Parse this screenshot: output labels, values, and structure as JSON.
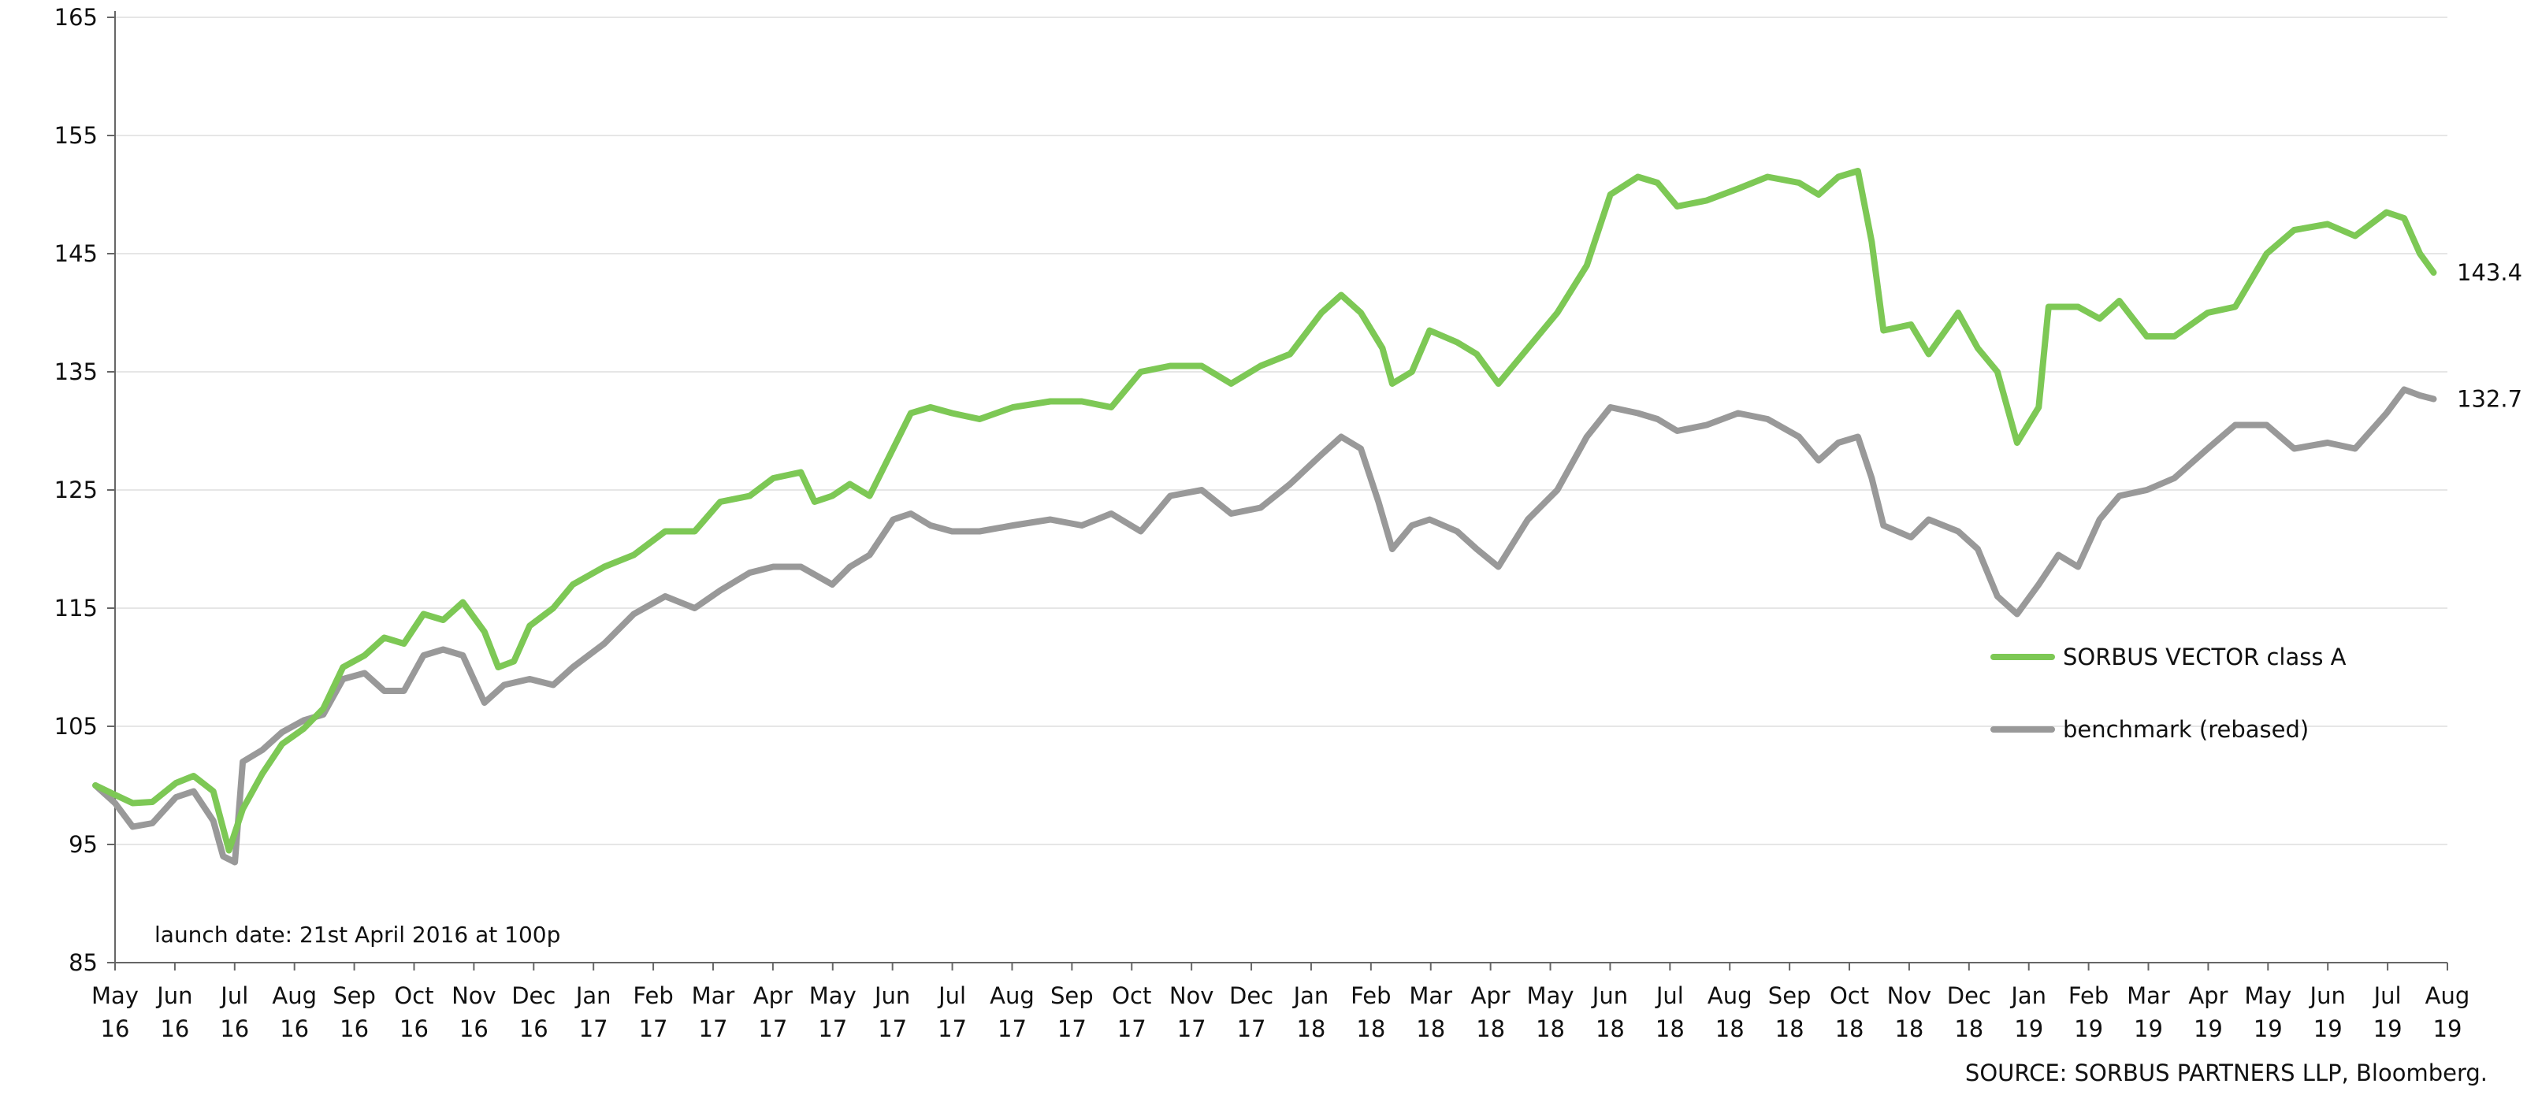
{
  "chart_data": {
    "type": "line",
    "title": "",
    "xlabel": "",
    "ylabel": "",
    "ylim": [
      85,
      165
    ],
    "yticks": [
      85,
      95,
      105,
      115,
      125,
      135,
      145,
      155,
      165
    ],
    "grid": true,
    "legend_position": "right",
    "x_axis": {
      "start": "2016-05",
      "end": "2019-08",
      "ticks": [
        {
          "month": "May",
          "year": "16"
        },
        {
          "month": "Jun",
          "year": "16"
        },
        {
          "month": "Jul",
          "year": "16"
        },
        {
          "month": "Aug",
          "year": "16"
        },
        {
          "month": "Sep",
          "year": "16"
        },
        {
          "month": "Oct",
          "year": "16"
        },
        {
          "month": "Nov",
          "year": "16"
        },
        {
          "month": "Dec",
          "year": "16"
        },
        {
          "month": "Jan",
          "year": "17"
        },
        {
          "month": "Feb",
          "year": "17"
        },
        {
          "month": "Mar",
          "year": "17"
        },
        {
          "month": "Apr",
          "year": "17"
        },
        {
          "month": "May",
          "year": "17"
        },
        {
          "month": "Jun",
          "year": "17"
        },
        {
          "month": "Jul",
          "year": "17"
        },
        {
          "month": "Aug",
          "year": "17"
        },
        {
          "month": "Sep",
          "year": "17"
        },
        {
          "month": "Oct",
          "year": "17"
        },
        {
          "month": "Nov",
          "year": "17"
        },
        {
          "month": "Dec",
          "year": "17"
        },
        {
          "month": "Jan",
          "year": "18"
        },
        {
          "month": "Feb",
          "year": "18"
        },
        {
          "month": "Mar",
          "year": "18"
        },
        {
          "month": "Apr",
          "year": "18"
        },
        {
          "month": "May",
          "year": "18"
        },
        {
          "month": "Jun",
          "year": "18"
        },
        {
          "month": "Jul",
          "year": "18"
        },
        {
          "month": "Aug",
          "year": "18"
        },
        {
          "month": "Sep",
          "year": "18"
        },
        {
          "month": "Oct",
          "year": "18"
        },
        {
          "month": "Nov",
          "year": "18"
        },
        {
          "month": "Dec",
          "year": "18"
        },
        {
          "month": "Jan",
          "year": "19"
        },
        {
          "month": "Feb",
          "year": "19"
        },
        {
          "month": "Mar",
          "year": "19"
        },
        {
          "month": "Apr",
          "year": "19"
        },
        {
          "month": "May",
          "year": "19"
        },
        {
          "month": "Jun",
          "year": "19"
        },
        {
          "month": "Jul",
          "year": "19"
        },
        {
          "month": "Aug",
          "year": "19"
        }
      ]
    },
    "series": [
      {
        "name": "SORBUS VECTOR class A",
        "color": "#7dc855",
        "end_label": "143.4",
        "points": [
          [
            "2016-04-21",
            100.0
          ],
          [
            "2016-05-01",
            99.2
          ],
          [
            "2016-05-10",
            98.5
          ],
          [
            "2016-05-20",
            98.6
          ],
          [
            "2016-06-01",
            100.2
          ],
          [
            "2016-06-10",
            100.8
          ],
          [
            "2016-06-20",
            99.5
          ],
          [
            "2016-06-28",
            94.5
          ],
          [
            "2016-07-05",
            98.0
          ],
          [
            "2016-07-15",
            101.0
          ],
          [
            "2016-07-25",
            103.5
          ],
          [
            "2016-08-05",
            104.8
          ],
          [
            "2016-08-15",
            106.5
          ],
          [
            "2016-08-25",
            110.0
          ],
          [
            "2016-09-05",
            111.0
          ],
          [
            "2016-09-15",
            112.5
          ],
          [
            "2016-09-25",
            112.0
          ],
          [
            "2016-10-05",
            114.5
          ],
          [
            "2016-10-15",
            114.0
          ],
          [
            "2016-10-25",
            115.5
          ],
          [
            "2016-11-05",
            113.0
          ],
          [
            "2016-11-12",
            110.0
          ],
          [
            "2016-11-20",
            110.5
          ],
          [
            "2016-11-28",
            113.5
          ],
          [
            "2016-12-10",
            115.0
          ],
          [
            "2016-12-20",
            117.0
          ],
          [
            "2017-01-05",
            118.5
          ],
          [
            "2017-01-20",
            119.5
          ],
          [
            "2017-02-05",
            121.5
          ],
          [
            "2017-02-20",
            121.5
          ],
          [
            "2017-03-05",
            124.0
          ],
          [
            "2017-03-20",
            124.5
          ],
          [
            "2017-04-01",
            126.0
          ],
          [
            "2017-04-15",
            126.5
          ],
          [
            "2017-04-22",
            124.0
          ],
          [
            "2017-05-01",
            124.5
          ],
          [
            "2017-05-10",
            125.5
          ],
          [
            "2017-05-20",
            124.5
          ],
          [
            "2017-06-01",
            128.5
          ],
          [
            "2017-06-10",
            131.5
          ],
          [
            "2017-06-20",
            132.0
          ],
          [
            "2017-07-01",
            131.5
          ],
          [
            "2017-07-15",
            131.0
          ],
          [
            "2017-08-01",
            132.0
          ],
          [
            "2017-08-20",
            132.5
          ],
          [
            "2017-09-05",
            132.5
          ],
          [
            "2017-09-20",
            132.0
          ],
          [
            "2017-10-05",
            135.0
          ],
          [
            "2017-10-20",
            135.5
          ],
          [
            "2017-11-05",
            135.5
          ],
          [
            "2017-11-20",
            134.0
          ],
          [
            "2017-12-05",
            135.5
          ],
          [
            "2017-12-20",
            136.5
          ],
          [
            "2018-01-05",
            140.0
          ],
          [
            "2018-01-15",
            141.5
          ],
          [
            "2018-01-25",
            140.0
          ],
          [
            "2018-02-05",
            137.0
          ],
          [
            "2018-02-10",
            134.0
          ],
          [
            "2018-02-20",
            135.0
          ],
          [
            "2018-03-01",
            138.5
          ],
          [
            "2018-03-15",
            137.5
          ],
          [
            "2018-03-25",
            136.5
          ],
          [
            "2018-04-05",
            134.0
          ],
          [
            "2018-04-20",
            137.0
          ],
          [
            "2018-05-05",
            140.0
          ],
          [
            "2018-05-20",
            144.0
          ],
          [
            "2018-06-01",
            150.0
          ],
          [
            "2018-06-15",
            151.5
          ],
          [
            "2018-06-25",
            151.0
          ],
          [
            "2018-07-05",
            149.0
          ],
          [
            "2018-07-20",
            149.5
          ],
          [
            "2018-08-05",
            150.5
          ],
          [
            "2018-08-20",
            151.5
          ],
          [
            "2018-09-05",
            151.0
          ],
          [
            "2018-09-15",
            150.0
          ],
          [
            "2018-09-25",
            151.5
          ],
          [
            "2018-10-05",
            152.0
          ],
          [
            "2018-10-12",
            146.0
          ],
          [
            "2018-10-18",
            138.5
          ],
          [
            "2018-11-01",
            139.0
          ],
          [
            "2018-11-10",
            136.5
          ],
          [
            "2018-11-25",
            140.0
          ],
          [
            "2018-12-05",
            137.0
          ],
          [
            "2018-12-15",
            135.0
          ],
          [
            "2018-12-25",
            129.0
          ],
          [
            "2019-01-05",
            132.0
          ],
          [
            "2019-01-10",
            140.5
          ],
          [
            "2019-01-25",
            140.5
          ],
          [
            "2019-02-05",
            139.5
          ],
          [
            "2019-02-15",
            141.0
          ],
          [
            "2019-03-01",
            138.0
          ],
          [
            "2019-03-15",
            138.0
          ],
          [
            "2019-04-01",
            140.0
          ],
          [
            "2019-04-15",
            140.5
          ],
          [
            "2019-05-01",
            145.0
          ],
          [
            "2019-05-15",
            147.0
          ],
          [
            "2019-06-01",
            147.5
          ],
          [
            "2019-06-15",
            146.5
          ],
          [
            "2019-07-01",
            148.5
          ],
          [
            "2019-07-10",
            148.0
          ],
          [
            "2019-07-18",
            145.0
          ],
          [
            "2019-07-25",
            143.4
          ]
        ]
      },
      {
        "name": "benchmark (rebased)",
        "color": "#999999",
        "end_label": "132.7",
        "points": [
          [
            "2016-04-21",
            100.0
          ],
          [
            "2016-05-01",
            98.5
          ],
          [
            "2016-05-10",
            96.5
          ],
          [
            "2016-05-20",
            96.8
          ],
          [
            "2016-06-01",
            99.0
          ],
          [
            "2016-06-10",
            99.5
          ],
          [
            "2016-06-20",
            97.0
          ],
          [
            "2016-06-25",
            94.0
          ],
          [
            "2016-07-01",
            93.5
          ],
          [
            "2016-07-05",
            102.0
          ],
          [
            "2016-07-15",
            103.0
          ],
          [
            "2016-07-25",
            104.5
          ],
          [
            "2016-08-05",
            105.5
          ],
          [
            "2016-08-15",
            106.0
          ],
          [
            "2016-08-25",
            109.0
          ],
          [
            "2016-09-05",
            109.5
          ],
          [
            "2016-09-15",
            108.0
          ],
          [
            "2016-09-25",
            108.0
          ],
          [
            "2016-10-05",
            111.0
          ],
          [
            "2016-10-15",
            111.5
          ],
          [
            "2016-10-25",
            111.0
          ],
          [
            "2016-11-05",
            107.0
          ],
          [
            "2016-11-15",
            108.5
          ],
          [
            "2016-11-28",
            109.0
          ],
          [
            "2016-12-10",
            108.5
          ],
          [
            "2016-12-20",
            110.0
          ],
          [
            "2017-01-05",
            112.0
          ],
          [
            "2017-01-20",
            114.5
          ],
          [
            "2017-02-05",
            116.0
          ],
          [
            "2017-02-20",
            115.0
          ],
          [
            "2017-03-05",
            116.5
          ],
          [
            "2017-03-20",
            118.0
          ],
          [
            "2017-04-01",
            118.5
          ],
          [
            "2017-04-15",
            118.5
          ],
          [
            "2017-05-01",
            117.0
          ],
          [
            "2017-05-10",
            118.5
          ],
          [
            "2017-05-20",
            119.5
          ],
          [
            "2017-06-01",
            122.5
          ],
          [
            "2017-06-10",
            123.0
          ],
          [
            "2017-06-20",
            122.0
          ],
          [
            "2017-07-01",
            121.5
          ],
          [
            "2017-07-15",
            121.5
          ],
          [
            "2017-08-01",
            122.0
          ],
          [
            "2017-08-20",
            122.5
          ],
          [
            "2017-09-05",
            122.0
          ],
          [
            "2017-09-20",
            123.0
          ],
          [
            "2017-10-05",
            121.5
          ],
          [
            "2017-10-20",
            124.5
          ],
          [
            "2017-11-05",
            125.0
          ],
          [
            "2017-11-20",
            123.0
          ],
          [
            "2017-12-05",
            123.5
          ],
          [
            "2017-12-20",
            125.5
          ],
          [
            "2018-01-05",
            128.0
          ],
          [
            "2018-01-15",
            129.5
          ],
          [
            "2018-01-25",
            128.5
          ],
          [
            "2018-02-03",
            124.0
          ],
          [
            "2018-02-10",
            120.0
          ],
          [
            "2018-02-20",
            122.0
          ],
          [
            "2018-03-01",
            122.5
          ],
          [
            "2018-03-15",
            121.5
          ],
          [
            "2018-03-25",
            120.0
          ],
          [
            "2018-04-05",
            118.5
          ],
          [
            "2018-04-20",
            122.5
          ],
          [
            "2018-05-05",
            125.0
          ],
          [
            "2018-05-20",
            129.5
          ],
          [
            "2018-06-01",
            132.0
          ],
          [
            "2018-06-15",
            131.5
          ],
          [
            "2018-06-25",
            131.0
          ],
          [
            "2018-07-05",
            130.0
          ],
          [
            "2018-07-20",
            130.5
          ],
          [
            "2018-08-05",
            131.5
          ],
          [
            "2018-08-20",
            131.0
          ],
          [
            "2018-09-05",
            129.5
          ],
          [
            "2018-09-15",
            127.5
          ],
          [
            "2018-09-25",
            129.0
          ],
          [
            "2018-10-05",
            129.5
          ],
          [
            "2018-10-12",
            126.0
          ],
          [
            "2018-10-18",
            122.0
          ],
          [
            "2018-11-01",
            121.0
          ],
          [
            "2018-11-10",
            122.5
          ],
          [
            "2018-11-25",
            121.5
          ],
          [
            "2018-12-05",
            120.0
          ],
          [
            "2018-12-15",
            116.0
          ],
          [
            "2018-12-25",
            114.5
          ],
          [
            "2019-01-05",
            117.0
          ],
          [
            "2019-01-15",
            119.5
          ],
          [
            "2019-01-25",
            118.5
          ],
          [
            "2019-02-05",
            122.5
          ],
          [
            "2019-02-15",
            124.5
          ],
          [
            "2019-03-01",
            125.0
          ],
          [
            "2019-03-15",
            126.0
          ],
          [
            "2019-04-01",
            128.5
          ],
          [
            "2019-04-15",
            130.5
          ],
          [
            "2019-05-01",
            130.5
          ],
          [
            "2019-05-15",
            128.5
          ],
          [
            "2019-06-01",
            129.0
          ],
          [
            "2019-06-15",
            128.5
          ],
          [
            "2019-07-01",
            131.5
          ],
          [
            "2019-07-10",
            133.5
          ],
          [
            "2019-07-18",
            133.0
          ],
          [
            "2019-07-25",
            132.7
          ]
        ]
      }
    ],
    "annotation": "launch date: 21st April 2016 at 100p",
    "source": "SOURCE: SORBUS PARTNERS LLP, Bloomberg."
  }
}
